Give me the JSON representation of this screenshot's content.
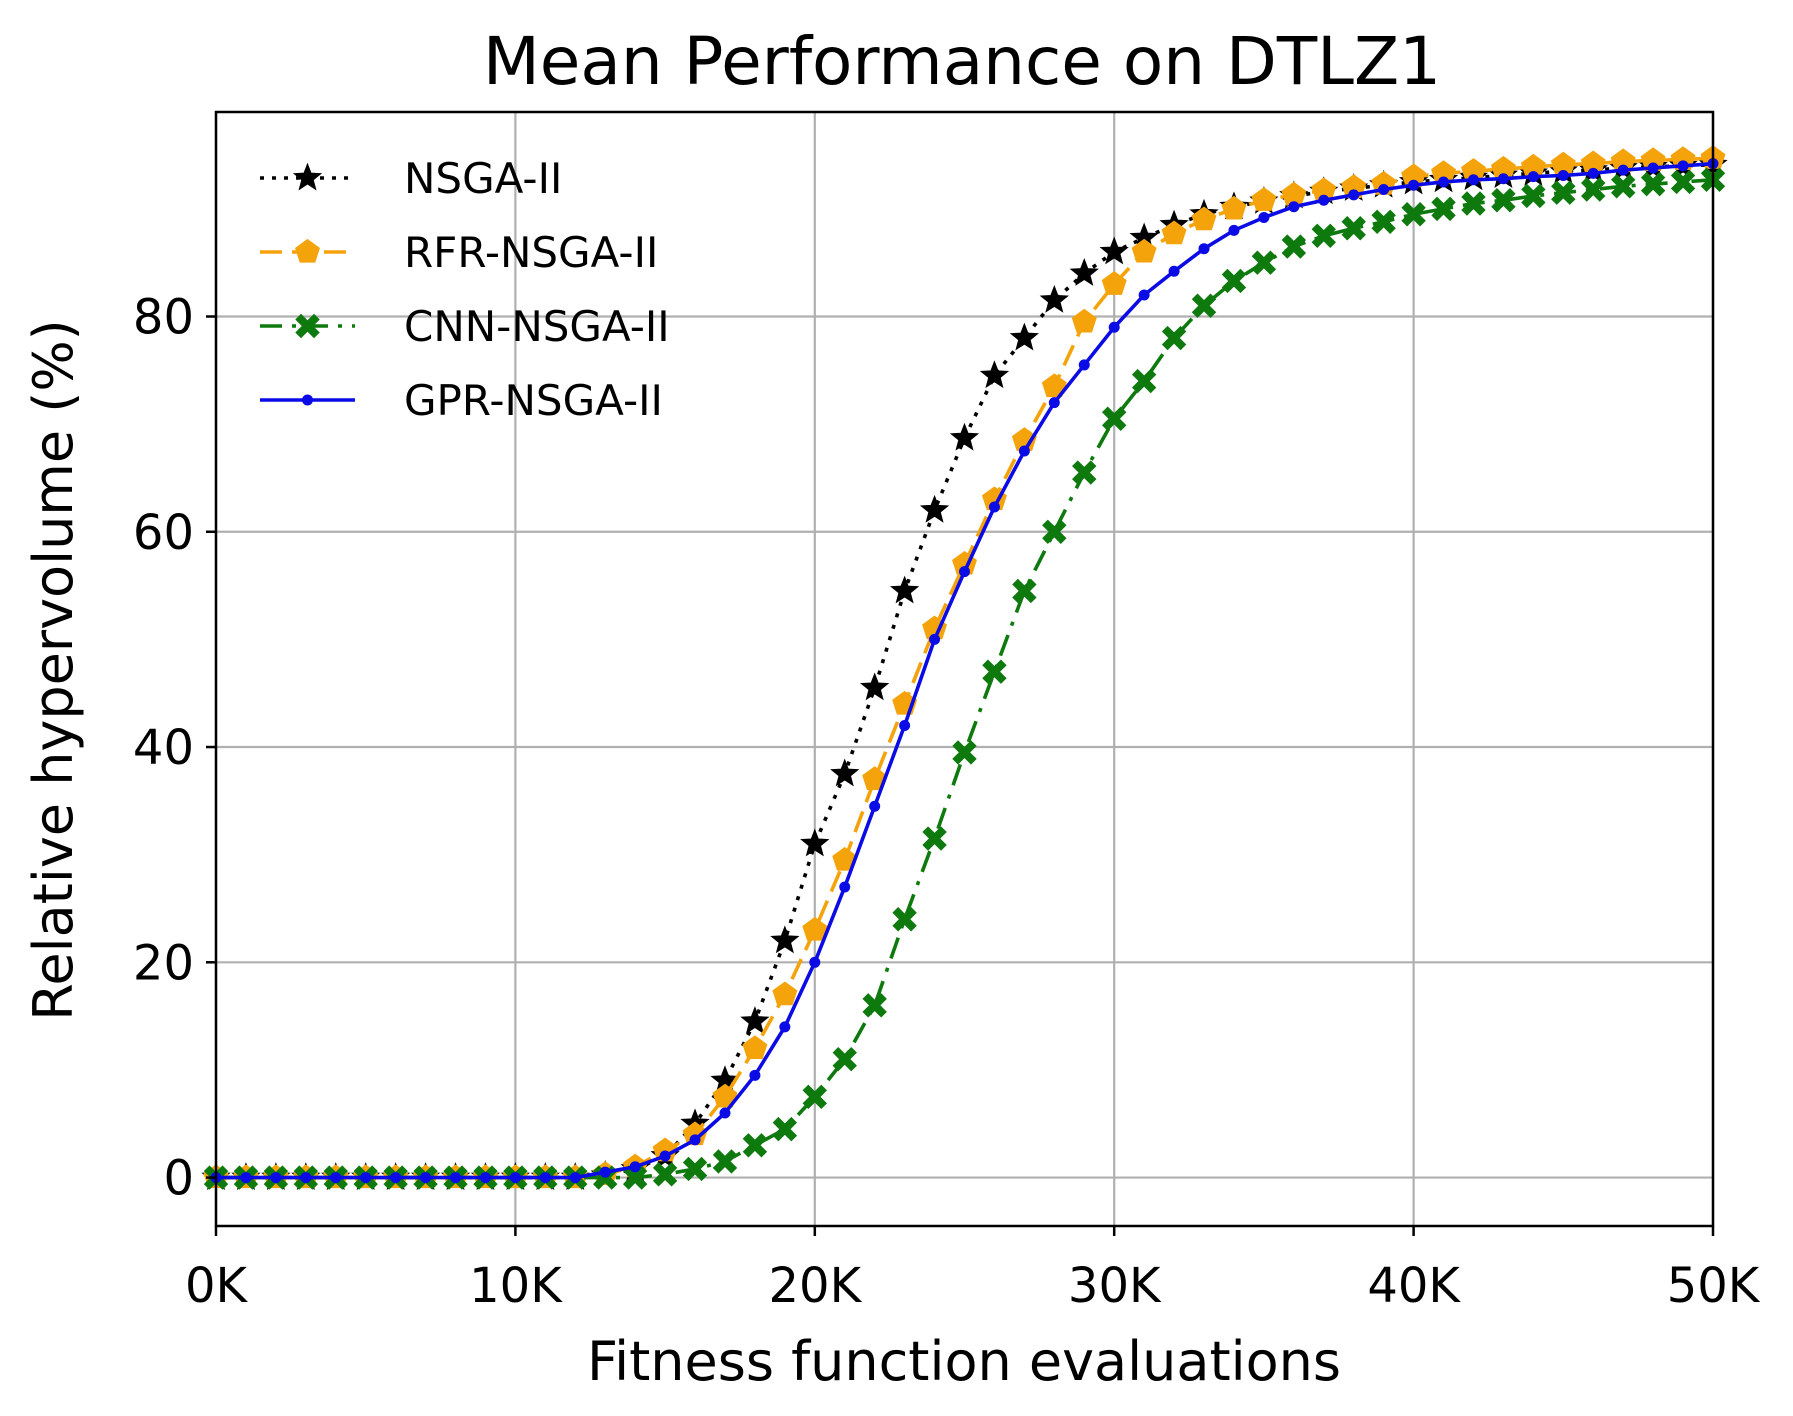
{
  "chart_data": {
    "type": "line",
    "title": "Mean Performance on DTLZ1",
    "xlabel": "Fitness function evaluations",
    "ylabel": "Relative hypervolume (%)",
    "xlim": [
      0,
      50
    ],
    "ylim": [
      -4.5,
      99
    ],
    "x_unit": "thousands of evaluations",
    "x_ticks": [
      0,
      10,
      20,
      30,
      40,
      50
    ],
    "x_tick_labels": [
      "0K",
      "10K",
      "20K",
      "30K",
      "40K",
      "50K"
    ],
    "y_ticks": [
      0,
      20,
      40,
      60,
      80
    ],
    "y_tick_labels": [
      "0",
      "20",
      "40",
      "60",
      "80"
    ],
    "grid": true,
    "legend_position": "upper-left",
    "x": [
      0,
      1,
      2,
      3,
      4,
      5,
      6,
      7,
      8,
      9,
      10,
      11,
      12,
      13,
      14,
      15,
      16,
      17,
      18,
      19,
      20,
      21,
      22,
      23,
      24,
      25,
      26,
      27,
      28,
      29,
      30,
      31,
      32,
      33,
      34,
      35,
      36,
      37,
      38,
      39,
      40,
      41,
      42,
      43,
      44,
      45,
      46,
      47,
      48,
      49,
      50
    ],
    "series": [
      {
        "name": "NSGA-II",
        "color": "#000000",
        "line_style": "dotted",
        "marker": "star",
        "values": [
          0,
          0,
          0,
          0,
          0,
          0,
          0,
          0,
          0,
          0,
          0,
          0,
          0,
          0.2,
          0.8,
          2,
          5,
          9,
          14.5,
          22,
          31,
          37.5,
          45.5,
          54.5,
          62,
          68.7,
          74.5,
          78,
          81.5,
          84,
          86,
          87.3,
          88.5,
          89.5,
          90.2,
          90.7,
          91.2,
          91.6,
          91.9,
          92.2,
          92.5,
          92.7,
          92.9,
          93.1,
          93.3,
          93.5,
          93.6,
          93.8,
          93.9,
          94,
          94.1
        ]
      },
      {
        "name": "RFR-NSGA-II",
        "color": "#f5a30a",
        "line_style": "dashed",
        "marker": "pentagon",
        "values": [
          0,
          0,
          0,
          0,
          0,
          0,
          0,
          0,
          0,
          0,
          0,
          0,
          0,
          0.3,
          1,
          2.5,
          4,
          7.5,
          12,
          17,
          23,
          29.5,
          37,
          44,
          51,
          57,
          63,
          68.5,
          73.5,
          79.5,
          83,
          86,
          87.7,
          89,
          90,
          90.8,
          91.3,
          91.7,
          92,
          92.3,
          93,
          93.3,
          93.5,
          93.7,
          93.9,
          94.1,
          94.2,
          94.4,
          94.5,
          94.6,
          94.7
        ]
      },
      {
        "name": "CNN-NSGA-II",
        "color": "#0e7a0e",
        "line_style": "dashdot",
        "marker": "x",
        "values": [
          0,
          0,
          0,
          0,
          0,
          0,
          0,
          0,
          0,
          0,
          0,
          0,
          0,
          0,
          0,
          0.3,
          0.8,
          1.5,
          3,
          4.5,
          7.5,
          11,
          16,
          24,
          31.5,
          39.5,
          47,
          54.5,
          60,
          65.5,
          70.5,
          74,
          78,
          81,
          83.3,
          85,
          86.5,
          87.5,
          88.2,
          88.8,
          89.5,
          90,
          90.5,
          90.8,
          91.2,
          91.5,
          91.8,
          92.1,
          92.3,
          92.5,
          92.7
        ]
      },
      {
        "name": "GPR-NSGA-II",
        "color": "#0b0be6",
        "line_style": "solid",
        "marker": "dot",
        "values": [
          0,
          0,
          0,
          0,
          0,
          0,
          0,
          0,
          0,
          0,
          0,
          0,
          0,
          0.5,
          1,
          2,
          3.5,
          6,
          9.5,
          14,
          20,
          27,
          34.5,
          42,
          50,
          56.3,
          62.3,
          67.5,
          72,
          75.5,
          79,
          82,
          84.2,
          86.3,
          88,
          89.2,
          90.2,
          90.8,
          91.3,
          91.8,
          92.2,
          92.5,
          92.7,
          92.8,
          93,
          93.1,
          93.3,
          93.6,
          93.8,
          94,
          94.2
        ]
      }
    ]
  }
}
